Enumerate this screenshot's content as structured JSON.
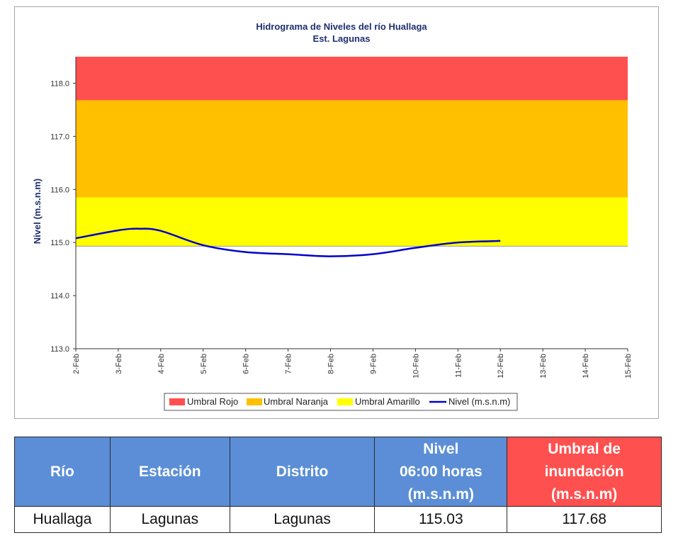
{
  "chart_data": {
    "type": "line",
    "title": "Hidrograma de Niveles del río Huallaga",
    "subtitle": "Est. Lagunas",
    "ylabel": "Nivel (m.s.n.m)",
    "xlabel": "",
    "ylim": [
      113.0,
      118.5
    ],
    "yticks": [
      "113.0",
      "114.0",
      "115.0",
      "116.0",
      "117.0",
      "118.0"
    ],
    "categories": [
      "2-Feb",
      "3-Feb",
      "4-Feb",
      "5-Feb",
      "6-Feb",
      "7-Feb",
      "8-Feb",
      "9-Feb",
      "10-Feb",
      "11-Feb",
      "12-Feb",
      "13-Feb",
      "14-Feb",
      "15-Feb"
    ],
    "bands": [
      {
        "name": "Umbral Amarillo",
        "from": 114.93,
        "to": 115.85,
        "color": "#ffff00"
      },
      {
        "name": "Umbral Naranja",
        "from": 115.85,
        "to": 117.68,
        "color": "#ffc000"
      },
      {
        "name": "Umbral Rojo",
        "from": 117.68,
        "to": 118.5,
        "color": "#ff5050"
      }
    ],
    "series": [
      {
        "name": "Nivel (m.s.n.m)",
        "color": "#0000cc",
        "x": [
          0,
          1,
          1.5,
          2,
          3,
          4,
          5,
          6,
          7,
          8,
          9,
          10
        ],
        "values": [
          115.08,
          115.23,
          115.26,
          115.22,
          114.95,
          114.82,
          114.78,
          114.74,
          114.78,
          114.9,
          115.0,
          115.03
        ]
      }
    ],
    "legend": [
      "Umbral Rojo",
      "Umbral Naranja",
      "Umbral Amarillo",
      "Nivel (m.s.n.m)"
    ],
    "legend_position": "bottom",
    "grid": false
  },
  "table": {
    "headers": {
      "rio": "Río",
      "estacion": "Estación",
      "distrito": "Distrito",
      "nivel_line1": "Nivel",
      "nivel_line2": "06:00 horas",
      "nivel_line3": "(m.s.n.m)",
      "umbral_line1": "Umbral de",
      "umbral_line2": "inundación",
      "umbral_line3": "(m.s.n.m)"
    },
    "row": {
      "rio": "Huallaga",
      "estacion": "Lagunas",
      "distrito": "Lagunas",
      "nivel": "115.03",
      "umbral": "117.68"
    }
  },
  "colors": {
    "header_blue": "#5b8ed6",
    "header_red": "#ff5050",
    "line_blue": "#0000cc"
  }
}
